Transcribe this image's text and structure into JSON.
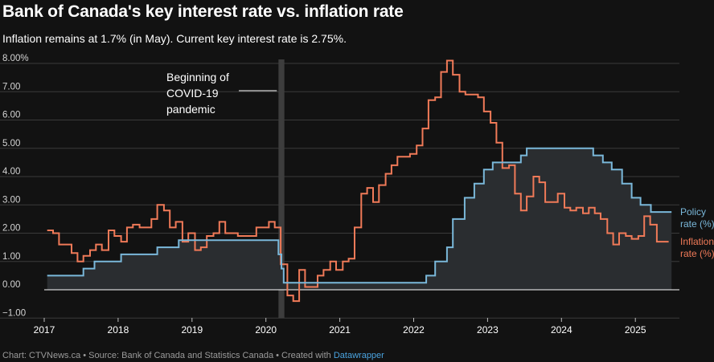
{
  "title": "Bank of Canada's key interest rate vs. inflation rate",
  "subtitle": "Inflation remains at 1.7% (in May). Current key interest rate is 2.75%.",
  "footer": {
    "prefix": "Chart: CTVNews.ca • Source: Bank of Canada and Statistics Canada • Created with ",
    "link": "Datawrapper"
  },
  "colors": {
    "background": "#121212",
    "policy": "#7ab8da",
    "inflation": "#f07a58",
    "area": "#2a2d30",
    "grid": "#3a3a3a",
    "covid_band": "#3d3d3d"
  },
  "chart_data": {
    "type": "line",
    "title": "Bank of Canada's key interest rate vs. inflation rate",
    "xlabel": "",
    "ylabel": "",
    "ylim": [
      -1,
      8
    ],
    "xlim": [
      2017.0,
      2025.83
    ],
    "grid": true,
    "x_ticks": [
      "2017",
      "2018",
      "2019",
      "2020",
      "2021",
      "2022",
      "2023",
      "2024",
      "2025"
    ],
    "y_ticks": [
      "8.00%",
      "7.00",
      "6.00",
      "5.00",
      "4.00",
      "3.00",
      "2.00",
      "1.00",
      "0.00",
      "−1.00"
    ],
    "annotation": {
      "lines": [
        "Beginning of",
        "COVID-19",
        "pandemic"
      ],
      "x_start": 2020.17,
      "x_end": 2020.25
    },
    "series": [
      {
        "name": "Policy rate (%)",
        "label_lines": [
          "Policy",
          "rate (%)"
        ],
        "step": true,
        "points": [
          [
            2017.04,
            0.5
          ],
          [
            2017.53,
            0.75
          ],
          [
            2017.68,
            1.0
          ],
          [
            2018.04,
            1.25
          ],
          [
            2018.53,
            1.5
          ],
          [
            2018.82,
            1.75
          ],
          [
            2020.17,
            1.25
          ],
          [
            2020.21,
            0.75
          ],
          [
            2020.24,
            0.25
          ],
          [
            2022.17,
            0.5
          ],
          [
            2022.29,
            1.0
          ],
          [
            2022.45,
            1.5
          ],
          [
            2022.53,
            2.5
          ],
          [
            2022.69,
            3.25
          ],
          [
            2022.82,
            3.75
          ],
          [
            2022.95,
            4.25
          ],
          [
            2023.07,
            4.5
          ],
          [
            2023.45,
            4.75
          ],
          [
            2023.53,
            5.0
          ],
          [
            2024.43,
            4.75
          ],
          [
            2024.56,
            4.5
          ],
          [
            2024.68,
            4.25
          ],
          [
            2024.82,
            3.75
          ],
          [
            2024.95,
            3.25
          ],
          [
            2025.07,
            3.0
          ],
          [
            2025.21,
            2.75
          ],
          [
            2025.49,
            2.75
          ]
        ]
      },
      {
        "name": "Inflation rate (%)",
        "label_lines": [
          "Inflation",
          "rate (%)"
        ],
        "step": true,
        "points": [
          [
            2017.04,
            2.1
          ],
          [
            2017.12,
            2.0
          ],
          [
            2017.2,
            1.6
          ],
          [
            2017.29,
            1.6
          ],
          [
            2017.37,
            1.3
          ],
          [
            2017.45,
            1.0
          ],
          [
            2017.53,
            1.2
          ],
          [
            2017.62,
            1.4
          ],
          [
            2017.7,
            1.6
          ],
          [
            2017.78,
            1.4
          ],
          [
            2017.87,
            2.1
          ],
          [
            2017.95,
            1.9
          ],
          [
            2018.04,
            1.7
          ],
          [
            2018.12,
            2.2
          ],
          [
            2018.2,
            2.3
          ],
          [
            2018.29,
            2.2
          ],
          [
            2018.37,
            2.2
          ],
          [
            2018.45,
            2.5
          ],
          [
            2018.53,
            3.0
          ],
          [
            2018.62,
            2.8
          ],
          [
            2018.7,
            2.2
          ],
          [
            2018.78,
            2.4
          ],
          [
            2018.87,
            1.7
          ],
          [
            2018.95,
            2.0
          ],
          [
            2019.04,
            1.4
          ],
          [
            2019.12,
            1.5
          ],
          [
            2019.2,
            1.9
          ],
          [
            2019.29,
            2.0
          ],
          [
            2019.37,
            2.4
          ],
          [
            2019.45,
            2.0
          ],
          [
            2019.53,
            2.0
          ],
          [
            2019.62,
            1.9
          ],
          [
            2019.7,
            1.9
          ],
          [
            2019.78,
            1.9
          ],
          [
            2019.87,
            2.2
          ],
          [
            2019.95,
            2.2
          ],
          [
            2020.04,
            2.4
          ],
          [
            2020.12,
            2.2
          ],
          [
            2020.2,
            0.9
          ],
          [
            2020.29,
            -0.2
          ],
          [
            2020.37,
            -0.4
          ],
          [
            2020.45,
            0.7
          ],
          [
            2020.53,
            0.1
          ],
          [
            2020.62,
            0.1
          ],
          [
            2020.7,
            0.5
          ],
          [
            2020.78,
            0.7
          ],
          [
            2020.87,
            1.0
          ],
          [
            2020.95,
            0.7
          ],
          [
            2021.04,
            1.0
          ],
          [
            2021.12,
            1.1
          ],
          [
            2021.2,
            2.2
          ],
          [
            2021.29,
            3.4
          ],
          [
            2021.37,
            3.6
          ],
          [
            2021.45,
            3.1
          ],
          [
            2021.53,
            3.7
          ],
          [
            2021.62,
            4.1
          ],
          [
            2021.7,
            4.4
          ],
          [
            2021.78,
            4.7
          ],
          [
            2021.87,
            4.7
          ],
          [
            2021.95,
            4.8
          ],
          [
            2022.04,
            5.1
          ],
          [
            2022.12,
            5.7
          ],
          [
            2022.2,
            6.7
          ],
          [
            2022.29,
            6.8
          ],
          [
            2022.37,
            7.7
          ],
          [
            2022.45,
            8.1
          ],
          [
            2022.53,
            7.6
          ],
          [
            2022.62,
            7.0
          ],
          [
            2022.7,
            6.9
          ],
          [
            2022.78,
            6.9
          ],
          [
            2022.87,
            6.8
          ],
          [
            2022.95,
            6.3
          ],
          [
            2023.04,
            5.9
          ],
          [
            2023.12,
            5.2
          ],
          [
            2023.2,
            4.3
          ],
          [
            2023.29,
            4.4
          ],
          [
            2023.37,
            3.4
          ],
          [
            2023.45,
            2.8
          ],
          [
            2023.53,
            3.3
          ],
          [
            2023.62,
            4.0
          ],
          [
            2023.7,
            3.8
          ],
          [
            2023.78,
            3.1
          ],
          [
            2023.87,
            3.1
          ],
          [
            2023.95,
            3.4
          ],
          [
            2024.04,
            2.9
          ],
          [
            2024.12,
            2.8
          ],
          [
            2024.2,
            2.9
          ],
          [
            2024.29,
            2.7
          ],
          [
            2024.37,
            2.9
          ],
          [
            2024.45,
            2.7
          ],
          [
            2024.53,
            2.5
          ],
          [
            2024.62,
            2.0
          ],
          [
            2024.7,
            1.6
          ],
          [
            2024.78,
            2.0
          ],
          [
            2024.87,
            1.9
          ],
          [
            2024.95,
            1.8
          ],
          [
            2025.04,
            1.9
          ],
          [
            2025.12,
            2.6
          ],
          [
            2025.2,
            2.3
          ],
          [
            2025.29,
            1.7
          ],
          [
            2025.37,
            1.7
          ],
          [
            2025.45,
            1.7
          ]
        ]
      }
    ]
  }
}
